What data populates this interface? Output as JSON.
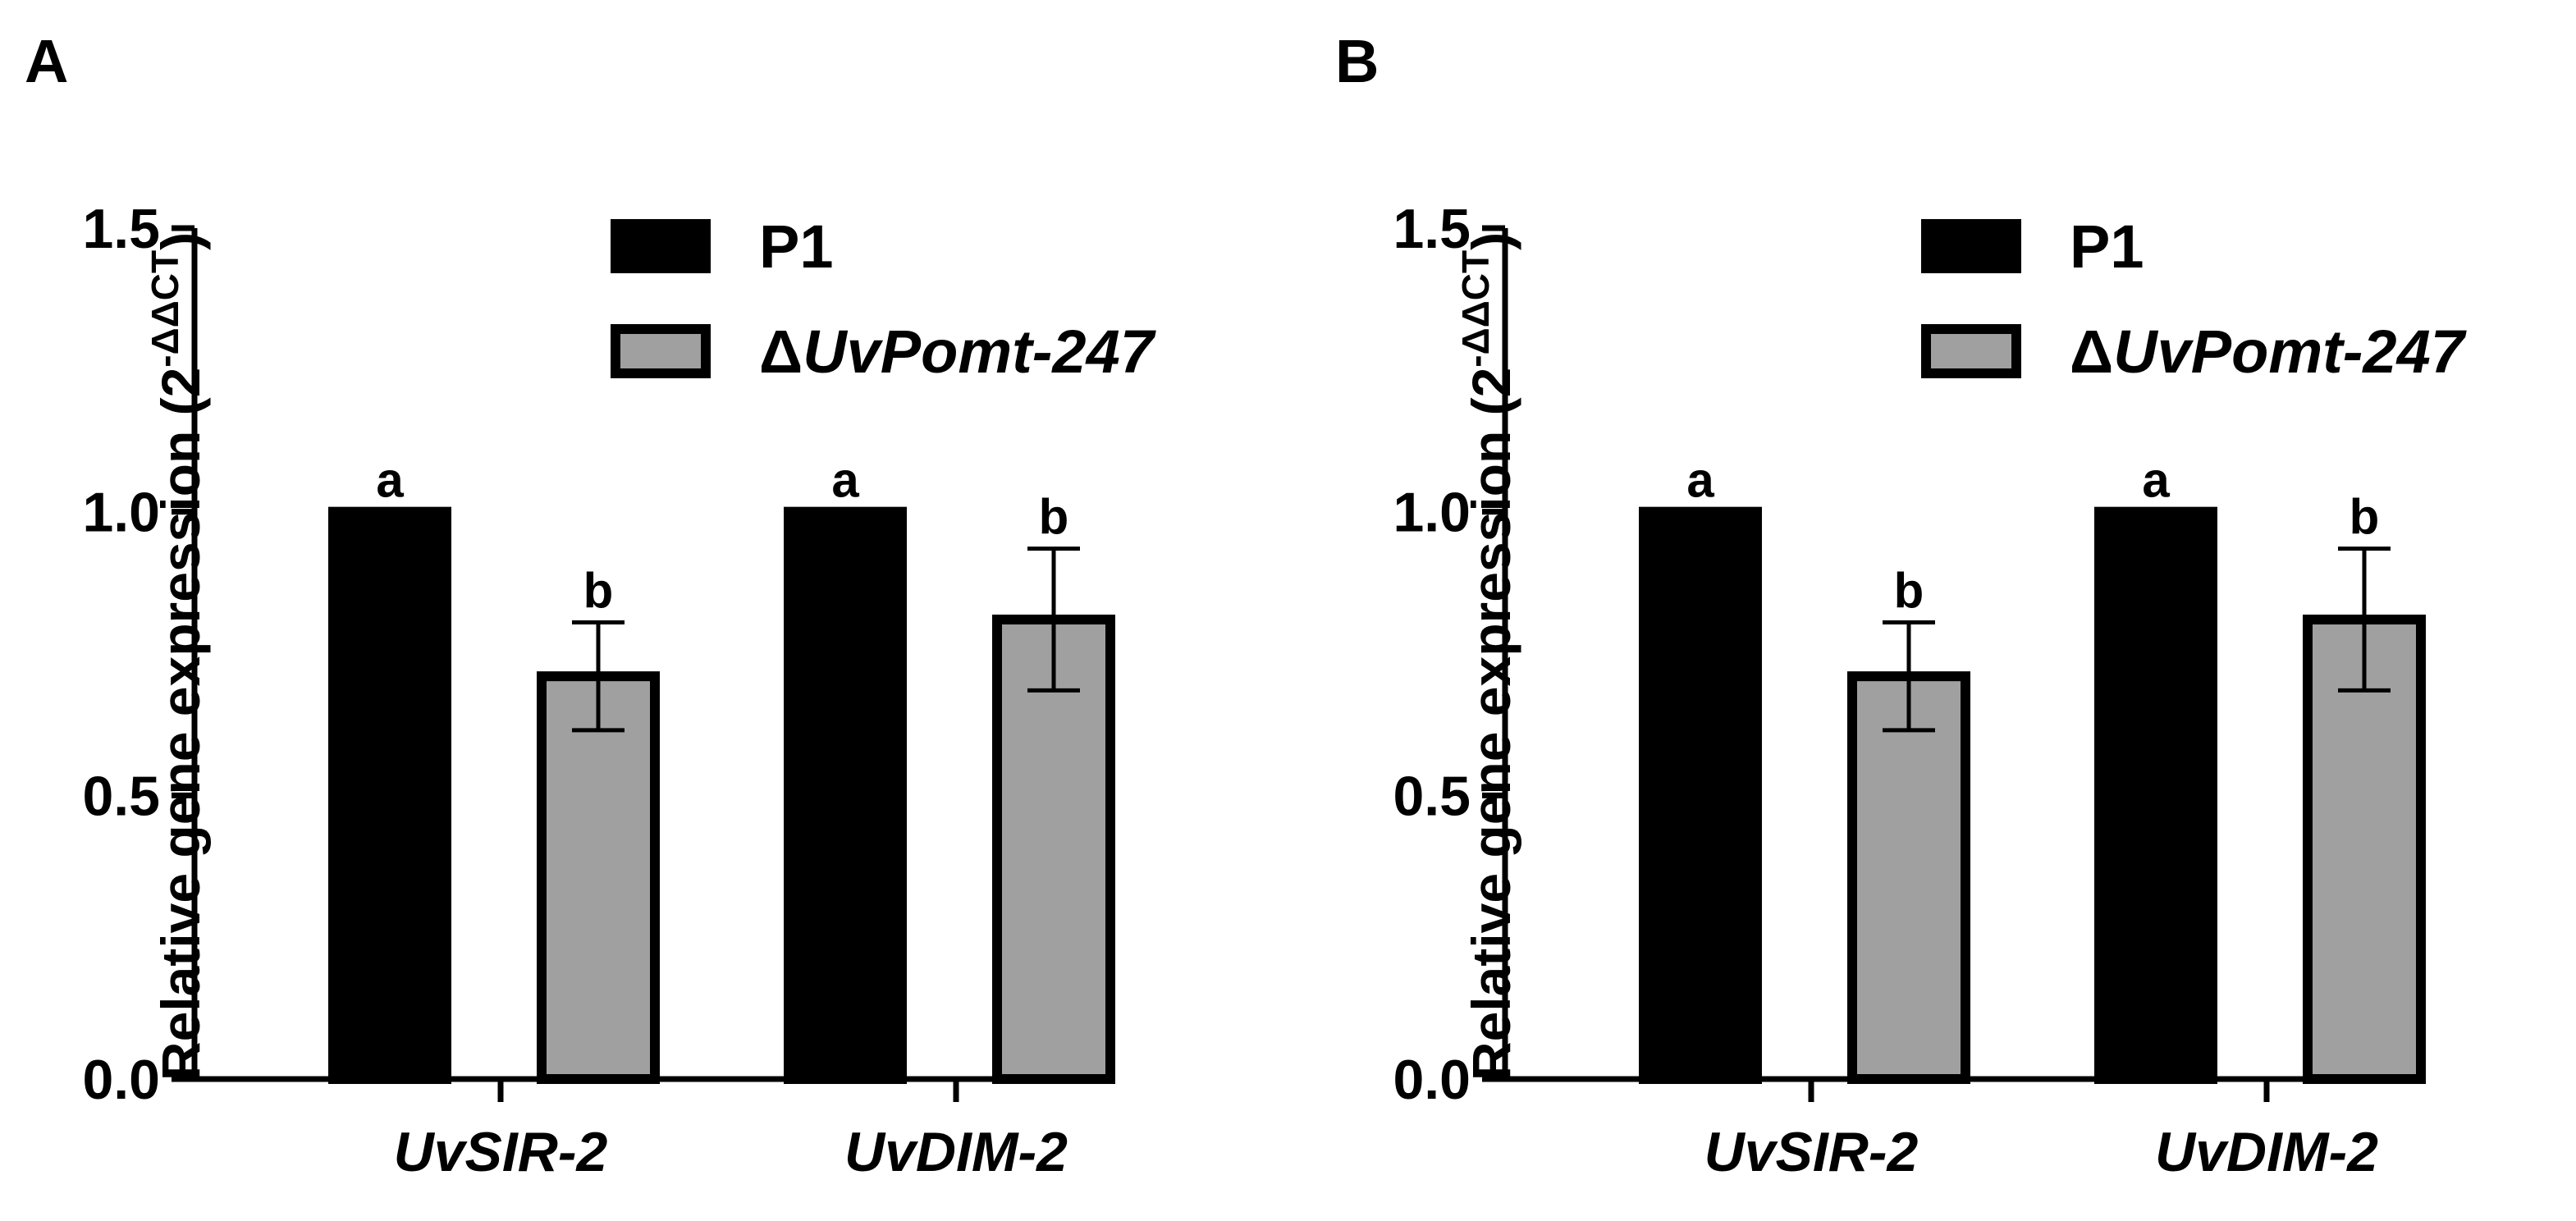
{
  "chart_data": [
    {
      "type": "bar",
      "panel_label": "A",
      "categories": [
        "UvSIR-2",
        "UvDIM-2"
      ],
      "series": [
        {
          "name": "P1",
          "color": "#000000",
          "values": [
            1.0,
            1.0
          ],
          "errors": [
            0,
            0
          ],
          "letters": [
            "a",
            "a"
          ]
        },
        {
          "name": "ΔUvPomt-247",
          "name_prefix": "Δ",
          "name_italic": "UvPomt-247",
          "color": "#a0a0a0",
          "values": [
            0.71,
            0.81
          ],
          "errors": [
            0.095,
            0.125
          ],
          "letters": [
            "b",
            "b"
          ]
        }
      ],
      "ylabel": "Relative gene expression (2",
      "ylabel_sup": "-ΔΔCT",
      "ylabel_close": ")",
      "ylim": [
        0,
        1.5
      ],
      "yticks": [
        "0.0",
        "0.5",
        "1.0",
        "1.5"
      ],
      "ytick_values": [
        0,
        0.5,
        1.0,
        1.5
      ],
      "grid": false,
      "legend": "top-right"
    },
    {
      "type": "bar",
      "panel_label": "B",
      "categories": [
        "UvSIR-2",
        "UvDIM-2"
      ],
      "series": [
        {
          "name": "P1",
          "color": "#000000",
          "values": [
            1.0,
            1.0
          ],
          "errors": [
            0,
            0
          ],
          "letters": [
            "a",
            "a"
          ]
        },
        {
          "name": "ΔUvPomt-247",
          "name_prefix": "Δ",
          "name_italic": "UvPomt-247",
          "color": "#a0a0a0",
          "values": [
            0.71,
            0.81
          ],
          "errors": [
            0.095,
            0.125
          ],
          "letters": [
            "b",
            "b"
          ]
        }
      ],
      "ylabel": "Relative gene expression (2",
      "ylabel_sup": "-ΔΔCT",
      "ylabel_close": ")",
      "ylim": [
        0,
        1.5
      ],
      "yticks": [
        "0.0",
        "0.5",
        "1.0",
        "1.5"
      ],
      "ytick_values": [
        0,
        0.5,
        1.0,
        1.5
      ],
      "grid": false,
      "legend": "top-right"
    }
  ]
}
